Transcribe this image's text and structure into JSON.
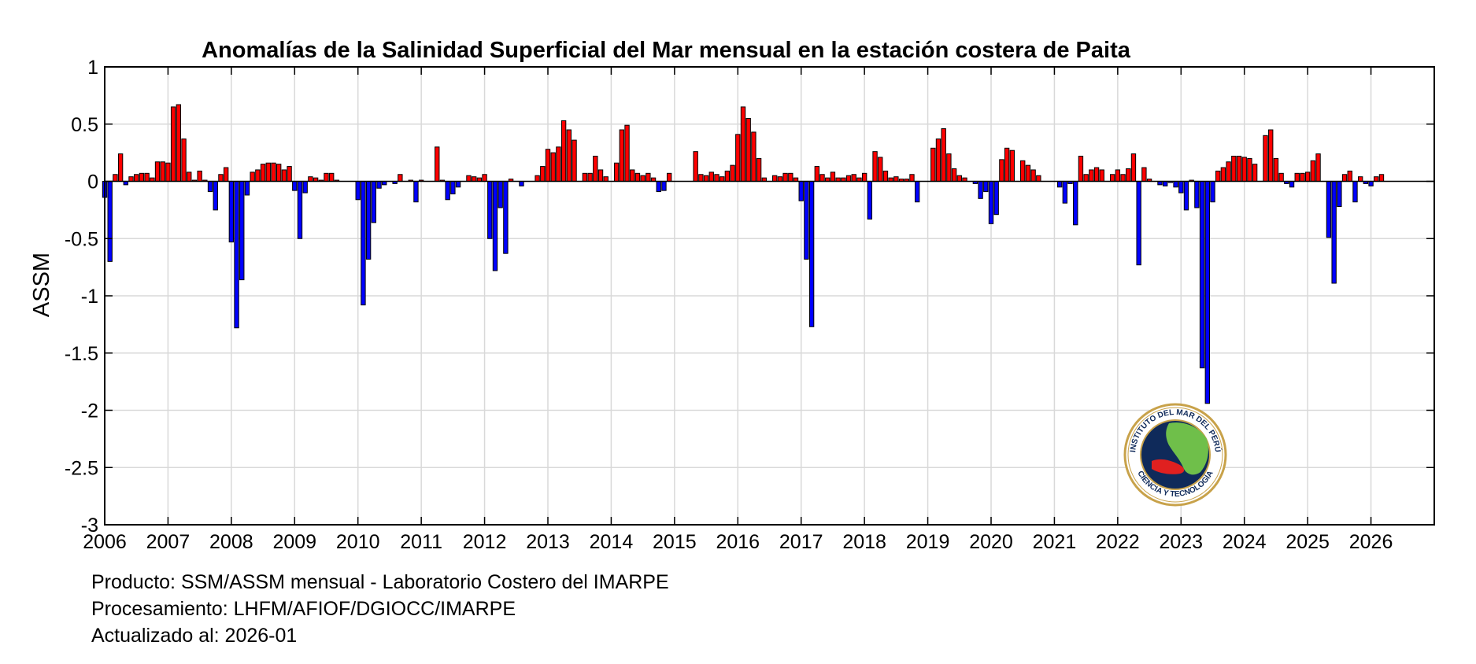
{
  "chart_data": {
    "type": "bar",
    "title": "Anomalías de la Salinidad Superficial del Mar mensual en la estación costera de Paita",
    "xlabel": "",
    "ylabel": "ASSM",
    "xlim": [
      "2006-01",
      "2027-01"
    ],
    "ylim": [
      -3,
      1
    ],
    "grid": true,
    "x_ticks": [
      "2006",
      "2007",
      "2008",
      "2009",
      "2010",
      "2011",
      "2012",
      "2013",
      "2014",
      "2015",
      "2016",
      "2017",
      "2018",
      "2019",
      "2020",
      "2021",
      "2022",
      "2023",
      "2024",
      "2025",
      "2026"
    ],
    "y_ticks": [
      "1",
      "0.5",
      "0",
      "-0.5",
      "-1",
      "-1.5",
      "-2",
      "-2.5",
      "-3"
    ],
    "colors": {
      "positive": "#ff0000",
      "negative": "#0000ff",
      "edge": "#000000"
    },
    "start_month": "2006-01",
    "values": [
      -0.14,
      -0.7,
      0.06,
      0.24,
      -0.03,
      0.04,
      0.06,
      0.07,
      0.07,
      0.03,
      0.17,
      0.17,
      0.16,
      0.65,
      0.67,
      0.37,
      0.08,
      0.01,
      0.09,
      0.01,
      -0.09,
      -0.25,
      0.06,
      0.12,
      -0.53,
      -1.28,
      -0.86,
      -0.12,
      0.08,
      0.1,
      0.15,
      0.16,
      0.16,
      0.15,
      0.1,
      0.13,
      -0.08,
      -0.5,
      -0.1,
      0.04,
      0.03,
      0.01,
      0.07,
      0.07,
      0.01,
      0.0,
      0.0,
      0.0,
      -0.16,
      -1.08,
      -0.68,
      -0.36,
      -0.06,
      -0.03,
      0.0,
      -0.02,
      0.06,
      0.0,
      0.01,
      -0.18,
      0.01,
      0.0,
      0.0,
      0.3,
      0.01,
      -0.16,
      -0.11,
      -0.05,
      0.0,
      0.05,
      0.04,
      0.03,
      0.06,
      -0.5,
      -0.78,
      -0.23,
      -0.63,
      0.02,
      0.0,
      -0.04,
      0.0,
      0.0,
      0.05,
      0.13,
      0.28,
      0.25,
      0.3,
      0.53,
      0.45,
      0.36,
      0.0,
      0.07,
      0.07,
      0.22,
      0.1,
      0.04,
      0.0,
      0.16,
      0.45,
      0.49,
      0.1,
      0.07,
      0.05,
      0.07,
      0.03,
      -0.09,
      -0.08,
      0.07,
      0.0,
      0.0,
      0.0,
      0.0,
      0.26,
      0.06,
      0.05,
      0.08,
      0.06,
      0.04,
      0.09,
      0.14,
      0.41,
      0.65,
      0.55,
      0.43,
      0.2,
      0.03,
      0.0,
      0.05,
      0.04,
      0.07,
      0.07,
      0.03,
      -0.17,
      -0.68,
      -1.27,
      0.13,
      0.06,
      0.03,
      0.08,
      0.03,
      0.03,
      0.05,
      0.06,
      0.03,
      0.07,
      -0.33,
      0.26,
      0.21,
      0.09,
      0.03,
      0.04,
      0.02,
      0.02,
      0.06,
      -0.18,
      0.0,
      0.0,
      0.29,
      0.37,
      0.46,
      0.24,
      0.11,
      0.05,
      0.03,
      0.0,
      -0.02,
      -0.15,
      -0.09,
      -0.37,
      -0.29,
      0.19,
      0.29,
      0.27,
      0.0,
      0.18,
      0.14,
      0.1,
      0.05,
      0.0,
      0.0,
      0.0,
      -0.05,
      -0.19,
      -0.02,
      -0.38,
      0.22,
      0.06,
      0.1,
      0.12,
      0.1,
      0.0,
      0.06,
      0.1,
      0.06,
      0.11,
      0.24,
      -0.73,
      0.12,
      0.02,
      0.0,
      -0.03,
      -0.04,
      -0.01,
      -0.05,
      -0.1,
      -0.25,
      0.01,
      -0.23,
      -1.63,
      -1.94,
      -0.18,
      0.09,
      0.12,
      0.17,
      0.22,
      0.22,
      0.21,
      0.2,
      0.15,
      0.0,
      0.4,
      0.45,
      0.2,
      0.07,
      -0.02,
      -0.05,
      0.07,
      0.07,
      0.08,
      0.18,
      0.24,
      0.0,
      -0.49,
      -0.89,
      -0.22,
      0.06,
      0.09,
      -0.18,
      0.04,
      -0.02,
      -0.04,
      0.04,
      0.06
    ]
  },
  "footer": {
    "line1": "Producto: SSM/ASSM mensual - Laboratorio Costero del IMARPE",
    "line2": "Procesamiento: LHFM/AFIOF/DGIOCC/IMARPE",
    "line3": "Actualizado al: 2026-01"
  },
  "logo": {
    "name": "imarpe-logo",
    "text_top": "INSTITUTO DEL MAR DEL PERÚ",
    "text_bottom": "CIENCIA Y TECNOLOGÍA"
  }
}
